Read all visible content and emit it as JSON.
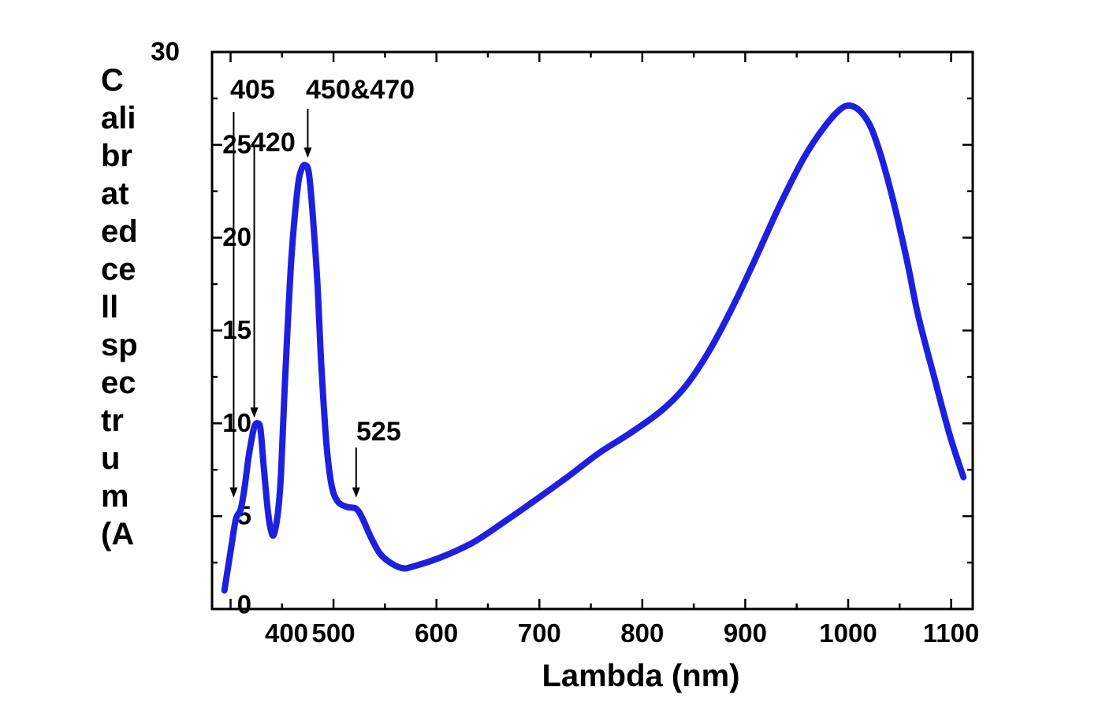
{
  "chart_data": {
    "type": "line",
    "xlabel": "Lambda (nm)",
    "ylabel_lines": [
      "C",
      "ali",
      "br",
      "at",
      "ed",
      "ce",
      "ll",
      "sp",
      "ec",
      "tr",
      "u",
      "m",
      "(A"
    ],
    "xlim": [
      382,
      1121
    ],
    "ylim": [
      0,
      30
    ],
    "xticks": [
      400,
      500,
      600,
      700,
      800,
      900,
      1000,
      1100
    ],
    "xtick_labels": [
      "400",
      "500",
      "600",
      "700",
      "800",
      "900",
      "1000",
      "1100"
    ],
    "yticks": [
      0,
      5,
      10,
      15,
      20,
      25,
      30
    ],
    "ytick_labels": [
      "0",
      "5",
      "10",
      "15",
      "20",
      "25",
      "30"
    ],
    "grid": false,
    "series": [
      {
        "color": "#1f1fe0",
        "x": [
          394,
          400,
          405,
          410,
          414,
          417,
          420,
          423,
          426,
          429,
          432,
          436,
          439,
          442,
          446,
          449,
          453,
          459,
          465,
          469,
          473,
          476,
          479,
          484,
          488,
          493,
          498,
          504,
          513,
          522,
          528,
          536,
          545,
          555,
          567,
          578,
          605,
          636,
          666,
          697,
          727,
          758,
          789,
          819,
          842,
          865,
          888,
          911,
          934,
          957,
          976,
          992,
          1003,
          1015,
          1026,
          1041,
          1057,
          1068,
          1084,
          1099,
          1112
        ],
        "y": [
          1.0,
          3.1,
          4.8,
          5.4,
          6.7,
          8.0,
          9.0,
          9.8,
          10.0,
          9.7,
          7.8,
          5.4,
          4.3,
          4.0,
          5.2,
          7.3,
          12.4,
          18.8,
          22.6,
          23.7,
          23.9,
          23.5,
          21.8,
          17.9,
          13.3,
          9.0,
          6.7,
          5.8,
          5.5,
          5.4,
          4.9,
          3.9,
          3.0,
          2.5,
          2.2,
          2.3,
          2.8,
          3.6,
          4.7,
          5.9,
          7.1,
          8.4,
          9.5,
          10.7,
          12.0,
          13.9,
          16.3,
          19.0,
          21.8,
          24.3,
          25.9,
          26.9,
          27.1,
          26.6,
          25.4,
          22.6,
          18.8,
          15.8,
          12.4,
          9.3,
          7.1
        ]
      }
    ],
    "annotations": [
      {
        "text": "405",
        "x": 403,
        "y": 6.0
      },
      {
        "text": "420",
        "x": 423,
        "y": 10.3
      },
      {
        "text": "450&470",
        "x": 475,
        "y": 24.3
      },
      {
        "text": "525",
        "x": 522,
        "y": 6.0
      }
    ]
  }
}
